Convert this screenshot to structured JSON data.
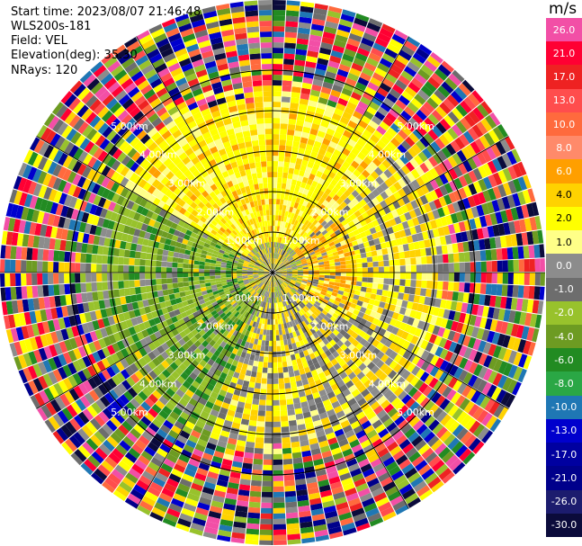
{
  "info": {
    "start_time": "Start time: 2023/08/07 21:46:48",
    "instrument": "WLS200s-181",
    "field": "Field: VEL",
    "elevation": "Elevation(deg): 35.30",
    "nrays": "NRays: 120"
  },
  "range_labels": [
    "1.00km",
    "2.00km",
    "3.00km",
    "4.00km",
    "5.00km"
  ],
  "colorbar": {
    "unit": "m/s",
    "ticks": [
      "26.0",
      "21.0",
      "17.0",
      "13.0",
      "10.0",
      "8.0",
      "6.0",
      "4.0",
      "2.0",
      "1.0",
      "0.0",
      "-1.0",
      "-2.0",
      "-4.0",
      "-6.0",
      "-8.0",
      "-10.0",
      "-13.0",
      "-17.0",
      "-21.0",
      "-26.0",
      "-30.0"
    ],
    "colors": [
      "#f24fa6",
      "#ff0033",
      "#ee2222",
      "#ff4d4d",
      "#ff6a3d",
      "#ff8a6a",
      "#ff9f00",
      "#ffd200",
      "#ffff00",
      "#ffff88",
      "#8c8c8c",
      "#6d6d6d",
      "#98c22c",
      "#6d9b22",
      "#228b22",
      "#2aa745",
      "#1f77b4",
      "#0000cd",
      "#0000a0",
      "#00008b",
      "#1c1c6e",
      "#0b0b3b"
    ]
  }
}
